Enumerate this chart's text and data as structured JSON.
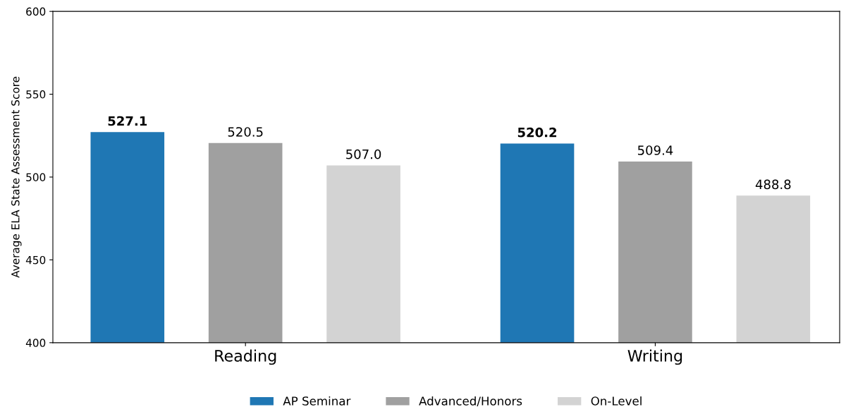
{
  "chart_data": {
    "type": "bar",
    "ylabel": "Average ELA State Assessment Score",
    "categories": [
      "Reading",
      "Writing"
    ],
    "series": [
      {
        "name": "AP Seminar",
        "color": "#1f77b4",
        "values": [
          527.1,
          520.2
        ],
        "value_labels": [
          "527.1",
          "520.2"
        ]
      },
      {
        "name": "Advanced/Honors",
        "color": "#a0a0a0",
        "values": [
          520.5,
          509.4
        ],
        "value_labels": [
          "520.5",
          "509.4"
        ]
      },
      {
        "name": "On-Level",
        "color": "#d3d3d3",
        "values": [
          507.0,
          488.8
        ],
        "value_labels": [
          "507.0",
          "488.8"
        ]
      }
    ],
    "ylim": [
      400,
      600
    ],
    "yticks": [
      400,
      450,
      500,
      550,
      600
    ],
    "grid": false,
    "legend": "bottom"
  }
}
